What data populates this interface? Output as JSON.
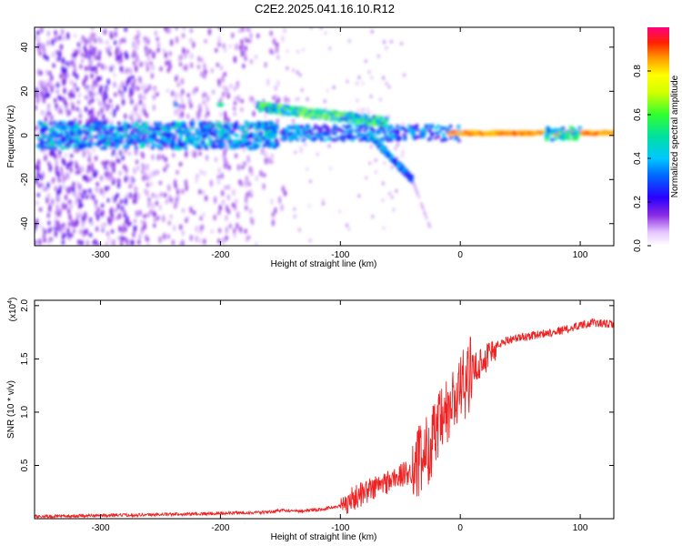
{
  "figure": {
    "title": "C2E2.2025.041.16.10.R12"
  },
  "chart_data": [
    {
      "type": "heatmap",
      "xlabel": "Height of straight line (km)",
      "ylabel": "Frequency (Hz)",
      "xlim": [
        -355,
        128
      ],
      "ylim": [
        -50,
        49
      ],
      "xticks": [
        -300,
        -200,
        -100,
        0,
        100
      ],
      "xtick_labels": [
        "-300",
        "-200",
        "-100",
        "0",
        "100"
      ],
      "yticks": [
        -40,
        -20,
        0,
        20,
        40
      ],
      "ytick_labels": [
        "-40",
        "-20",
        "0",
        "20",
        "40"
      ],
      "grid": false,
      "colorbar": {
        "label": "Normalized spectral amplitude",
        "range": [
          0,
          1
        ],
        "ticks": [
          0.0,
          0.2,
          0.4,
          0.6,
          0.8
        ],
        "tick_labels": [
          "0.0",
          "0.2",
          "0.4",
          "0.6",
          "0.8"
        ],
        "colormap": "rainbow (white-violet-blue-cyan-green-yellow-red-magenta)"
      },
      "features": [
        {
          "name": "main band",
          "x_range": [
            -350,
            128
          ],
          "frequency_hz": 1,
          "amplitude": "strong (red/yellow) for x > 0, mixed below"
        },
        {
          "name": "upper branch",
          "x_range": [
            -170,
            -60
          ],
          "frequency_hz_start": 13,
          "frequency_hz_end": 6
        },
        {
          "name": "lower branch",
          "x_range": [
            -75,
            -40
          ],
          "frequency_hz_start": 0,
          "frequency_hz_end": -20
        },
        {
          "name": "isolated blobs",
          "points": [
            [
              -237,
              14
            ],
            [
              -200,
              14
            ]
          ]
        }
      ]
    },
    {
      "type": "line",
      "xlabel": "Height of straight line (km)",
      "ylabel": "SNR (10 * v/v)",
      "y_multiplier_label": "(x10",
      "y_multiplier_exp": "4",
      "y_multiplier_close": ")",
      "xlim": [
        -355,
        128
      ],
      "ylim": [
        0,
        2.05
      ],
      "xticks": [
        -300,
        -200,
        -100,
        0,
        100
      ],
      "xtick_labels": [
        "-300",
        "-200",
        "-100",
        "0",
        "100"
      ],
      "yticks": [
        0.5,
        1.0,
        1.5,
        2.0
      ],
      "ytick_labels": [
        "0.5",
        "1.0",
        "1.5",
        "2.0"
      ],
      "grid": false,
      "color": "#ee2222",
      "series": [
        {
          "x": [
            -355,
            -300,
            -250,
            -200,
            -160,
            -150,
            -140,
            -120,
            -100,
            -80,
            -60,
            -40,
            -30,
            -20,
            -10,
            0,
            10,
            20,
            30,
            40,
            50,
            60,
            70,
            80,
            90,
            100,
            110,
            120,
            128
          ],
          "y": [
            0.02,
            0.03,
            0.04,
            0.05,
            0.06,
            0.08,
            0.07,
            0.08,
            0.12,
            0.25,
            0.35,
            0.45,
            0.6,
            0.8,
            1.0,
            1.2,
            1.4,
            1.5,
            1.62,
            1.68,
            1.7,
            1.72,
            1.74,
            1.76,
            1.78,
            1.82,
            1.84,
            1.83,
            1.82
          ]
        }
      ]
    }
  ]
}
